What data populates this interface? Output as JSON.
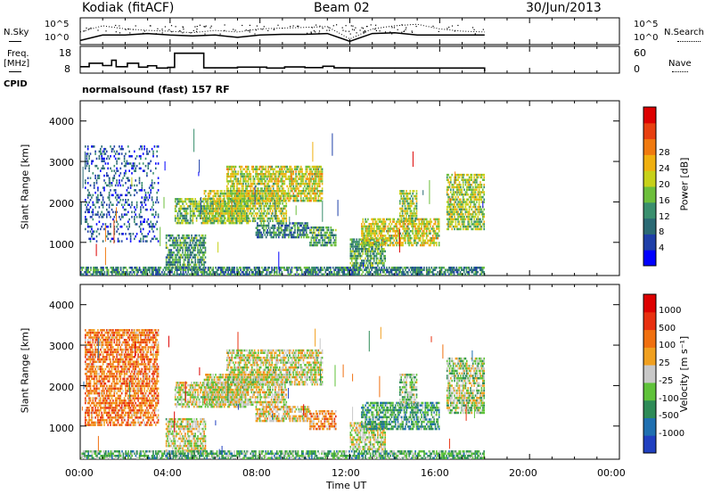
{
  "header": {
    "station": "Kodiak (fitACF)",
    "beam": "Beam 02",
    "date": "30/Jun/2013"
  },
  "labels": {
    "nsky": "N.Sky",
    "nsearch": "N.Search",
    "freq_line1": "Freq.",
    "freq_line2": "[MHz]",
    "nave": "Nave",
    "cpid": "CPID",
    "program": "normalsound (fast) 157 RF"
  },
  "chart_data": [
    {
      "type": "line",
      "name": "noise-panel",
      "left_ticks": [
        "10^5",
        "10^0"
      ],
      "right_ticks": [
        "10^5",
        "10^0"
      ],
      "x": [
        0,
        1,
        2,
        3,
        4,
        5,
        6,
        7,
        8,
        9,
        10,
        11,
        12,
        13,
        14,
        15,
        16,
        17,
        18
      ],
      "series": [
        {
          "values": [
            0.3,
            1.0,
            1.0,
            1.2,
            1.0,
            0.9,
            1.0,
            0.7,
            1.0,
            1.1,
            1.1,
            1.2,
            0.2,
            1.2,
            1.3,
            1.0,
            1.0,
            1.0,
            1.0
          ]
        },
        {
          "values": [
            1.4,
            2.2,
            1.8,
            1.6,
            1.5,
            1.3,
            1.6,
            1.4,
            1.8,
            1.9,
            2.0,
            2.1,
            0.5,
            1.8,
            2.2,
            2.4,
            1.8,
            1.5,
            1.4
          ]
        }
      ]
    },
    {
      "type": "line",
      "name": "freq-panel",
      "left_ticks": [
        "18",
        "8"
      ],
      "right_ticks": [
        "60",
        "0"
      ],
      "x": [
        0,
        0.4,
        1.0,
        1.4,
        1.6,
        2.1,
        2.6,
        3.0,
        3.4,
        3.9,
        4.2,
        5.5,
        7.0,
        8.3,
        9.1,
        10.0,
        10.8,
        11.3,
        12.0,
        16.0,
        18.0
      ],
      "series": [
        {
          "values": [
            10,
            11.5,
            10.5,
            12.8,
            10.0,
            11.5,
            9.8,
            10.4,
            9.4,
            9.7,
            15.8,
            9.5,
            9.8,
            9.4,
            9.9,
            9.6,
            10.2,
            9.5,
            9.4,
            9.4,
            9.4
          ]
        }
      ]
    },
    {
      "type": "heatmap",
      "name": "power-panel",
      "ylabel": "Slant Range [km]",
      "xlabel": "Time UT",
      "xlim": [
        0,
        24
      ],
      "ylim": [
        180,
        4500
      ],
      "x_ticks": [
        "00:00",
        "04:00",
        "08:00",
        "12:00",
        "16:00",
        "20:00",
        "00:00"
      ],
      "y_ticks": [
        1000,
        2000,
        3000,
        4000
      ],
      "colorbar_label": "Power [dB]",
      "colorbar_ticks": [
        "4",
        "8",
        "12",
        "16",
        "20",
        "24",
        "28"
      ],
      "colorbar_colors": [
        "#0000ff",
        "#1f3fa8",
        "#2b6a74",
        "#3a8f6e",
        "#6dbf3c",
        "#c7d11a",
        "#f0b010",
        "#f07a10",
        "#e84010",
        "#dd0000"
      ],
      "regions": [
        {
          "t": [
            3.8,
            5.6
          ],
          "r": [
            300,
            1200
          ],
          "level": 0.35
        },
        {
          "t": [
            4.2,
            7.5
          ],
          "r": [
            1450,
            2100
          ],
          "level": 0.45
        },
        {
          "t": [
            5.5,
            9.2
          ],
          "r": [
            1500,
            2300
          ],
          "level": 0.5
        },
        {
          "t": [
            6.5,
            10.8
          ],
          "r": [
            2000,
            2900
          ],
          "level": 0.55
        },
        {
          "t": [
            7.8,
            10.2
          ],
          "r": [
            1100,
            1500
          ],
          "level": 0.3
        },
        {
          "t": [
            10.2,
            11.4
          ],
          "r": [
            900,
            1400
          ],
          "level": 0.35
        },
        {
          "t": [
            12.0,
            13.6
          ],
          "r": [
            400,
            1100
          ],
          "level": 0.4
        },
        {
          "t": [
            12.5,
            16.0
          ],
          "r": [
            900,
            1600
          ],
          "level": 0.55
        },
        {
          "t": [
            14.2,
            15.0
          ],
          "r": [
            1500,
            2300
          ],
          "level": 0.5
        },
        {
          "t": [
            16.3,
            18.0
          ],
          "r": [
            1300,
            2700
          ],
          "level": 0.5
        },
        {
          "t": [
            0.2,
            3.5
          ],
          "r": [
            1000,
            3400
          ],
          "level": 0.2
        },
        {
          "t": [
            0.0,
            18.0
          ],
          "r": [
            180,
            400
          ],
          "level": 0.3
        }
      ]
    },
    {
      "type": "heatmap",
      "name": "velocity-panel",
      "ylabel": "Slant Range [km]",
      "xlabel": "Time UT",
      "xlim": [
        0,
        24
      ],
      "ylim": [
        180,
        4500
      ],
      "x_ticks": [
        "00:00",
        "04:00",
        "08:00",
        "12:00",
        "16:00",
        "20:00",
        "00:00"
      ],
      "y_ticks": [
        1000,
        2000,
        3000,
        4000
      ],
      "colorbar_label": "Velocity [m s⁻¹]",
      "colorbar_ticks": [
        "1000",
        "500",
        "100",
        "25",
        "-25",
        "-100",
        "-500",
        "-1000"
      ],
      "colorbar_colors": [
        "#2040c0",
        "#1f6fb0",
        "#2e8b57",
        "#5fc23a",
        "#c8c8c8",
        "#f0a020",
        "#f07010",
        "#e83010",
        "#dd0000"
      ],
      "regions": [
        {
          "t": [
            3.8,
            5.6
          ],
          "r": [
            300,
            1200
          ],
          "level": 0.5
        },
        {
          "t": [
            4.2,
            7.5
          ],
          "r": [
            1450,
            2100
          ],
          "level": 0.5
        },
        {
          "t": [
            5.5,
            9.2
          ],
          "r": [
            1500,
            2300
          ],
          "level": 0.5
        },
        {
          "t": [
            6.5,
            10.8
          ],
          "r": [
            2000,
            2900
          ],
          "level": 0.5
        },
        {
          "t": [
            7.8,
            10.2
          ],
          "r": [
            1100,
            1500
          ],
          "level": 0.55
        },
        {
          "t": [
            10.2,
            11.4
          ],
          "r": [
            900,
            1400
          ],
          "level": 0.65
        },
        {
          "t": [
            12.0,
            13.6
          ],
          "r": [
            400,
            1100
          ],
          "level": 0.5
        },
        {
          "t": [
            12.5,
            16.0
          ],
          "r": [
            900,
            1600
          ],
          "level": 0.3
        },
        {
          "t": [
            14.2,
            15.0
          ],
          "r": [
            1500,
            2300
          ],
          "level": 0.4
        },
        {
          "t": [
            16.3,
            18.0
          ],
          "r": [
            1300,
            2700
          ],
          "level": 0.45
        },
        {
          "t": [
            0.2,
            3.5
          ],
          "r": [
            1000,
            3400
          ],
          "level": 0.7
        },
        {
          "t": [
            0.0,
            18.0
          ],
          "r": [
            180,
            400
          ],
          "level": 0.35
        }
      ]
    }
  ]
}
